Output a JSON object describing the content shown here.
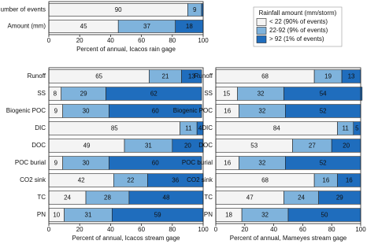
{
  "chart_data": [
    {
      "type": "stacked-barh",
      "categories": [
        "Number of events",
        "Amount (mm)"
      ],
      "series": [
        {
          "name": "< 22 (90% of events)",
          "color": "#f4f4f4",
          "values": [
            90,
            45
          ]
        },
        {
          "name": "22-92 (9% of events)",
          "color": "#7fb3dc",
          "values": [
            9,
            37
          ]
        },
        {
          "name": "> 92 (1% of events)",
          "color": "#1f6dbd",
          "values": [
            1,
            18
          ]
        }
      ],
      "legend_title": "Rainfall amount (mm/storm)",
      "xlabel": "Percent of annual, Icacos rain gage",
      "xlim": [
        0,
        100
      ],
      "xticks": [
        0,
        20,
        40,
        60,
        80,
        100
      ]
    },
    {
      "type": "stacked-barh",
      "categories": [
        "Runoff",
        "SS",
        "Biogenic POC",
        "DIC",
        "DOC",
        "POC burial",
        "CO2 sink",
        "TC",
        "PN"
      ],
      "series": [
        {
          "color": "#f4f4f4",
          "values": [
            65,
            8,
            9,
            85,
            49,
            9,
            42,
            24,
            10
          ]
        },
        {
          "color": "#7fb3dc",
          "values": [
            21,
            29,
            30,
            11,
            31,
            30,
            22,
            28,
            31
          ]
        },
        {
          "color": "#1f6dbd",
          "values": [
            13,
            62,
            60,
            4,
            20,
            60,
            36,
            48,
            59
          ]
        }
      ],
      "xlabel": "Percent of annual, Icacos stream gage",
      "xlim": [
        0,
        100
      ],
      "xticks": [
        0,
        20,
        40,
        60,
        80,
        100
      ]
    },
    {
      "type": "stacked-barh",
      "categories": [
        "Runoff",
        "SS",
        "Biogenic POC",
        "DIC",
        "DOC",
        "POC burial",
        "CO2 sink",
        "TC",
        "PN"
      ],
      "series": [
        {
          "color": "#f4f4f4",
          "values": [
            68,
            15,
            16,
            84,
            53,
            16,
            68,
            47,
            18
          ]
        },
        {
          "color": "#7fb3dc",
          "values": [
            19,
            32,
            32,
            11,
            27,
            32,
            16,
            24,
            32
          ]
        },
        {
          "color": "#1f6dbd",
          "values": [
            13,
            54,
            52,
            5,
            20,
            52,
            16,
            29,
            50
          ]
        }
      ],
      "xlabel": "Percent of annual, Mameyes stream gage",
      "xlim": [
        0,
        100
      ],
      "xticks": [
        0,
        20,
        40,
        60,
        80,
        100
      ]
    }
  ]
}
